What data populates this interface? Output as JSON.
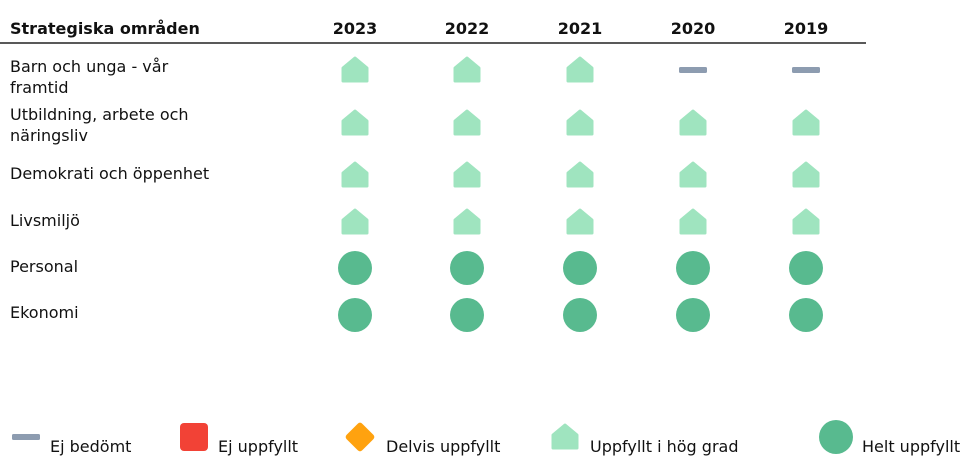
{
  "table": {
    "header": [
      "Strategiska områden",
      "2023",
      "2022",
      "2021",
      "2020",
      "2019"
    ],
    "rows": [
      {
        "label": "Barn och unga - vår framtid",
        "status": [
          3,
          3,
          3,
          0,
          0
        ]
      },
      {
        "label": "Utbildning, arbete och näringsliv",
        "status": [
          3,
          3,
          3,
          3,
          3
        ]
      },
      {
        "label": "Demokrati och öppenhet",
        "status": [
          3,
          3,
          3,
          3,
          3
        ]
      },
      {
        "label": "Livsmiljö",
        "status": [
          3,
          3,
          3,
          3,
          3
        ]
      },
      {
        "label": "Personal",
        "status": [
          4,
          4,
          4,
          4,
          4
        ]
      },
      {
        "label": "Ekonomi",
        "status": [
          4,
          4,
          4,
          4,
          4
        ]
      }
    ]
  },
  "legend": [
    "Ej bedömt",
    "Ej uppfyllt",
    "Delvis uppfyllt",
    "Uppfyllt i hög grad",
    "Helt uppfyllt"
  ]
}
